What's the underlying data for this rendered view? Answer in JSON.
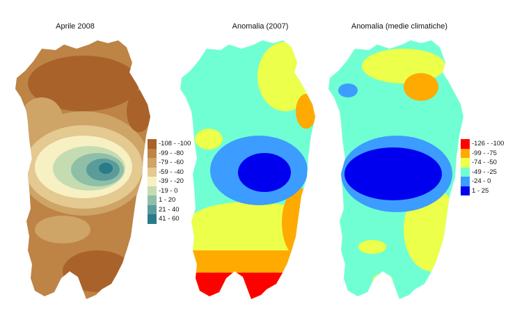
{
  "maps": [
    {
      "title": "Aprile 2008",
      "legend": [
        {
          "label": "-108 - -100",
          "color": "#a9622a"
        },
        {
          "label": "-99 - -80",
          "color": "#bd8446"
        },
        {
          "label": "-79 - -60",
          "color": "#cfa467"
        },
        {
          "label": "-59 - -40",
          "color": "#e4c990"
        },
        {
          "label": "-39 - -20",
          "color": "#f7f0c2"
        },
        {
          "label": "-19 - 0",
          "color": "#c5dcb2"
        },
        {
          "label": "1 - 20",
          "color": "#8fbfa7"
        },
        {
          "label": "21 - 40",
          "color": "#5a9c9a"
        },
        {
          "label": "41 - 60",
          "color": "#2a7a8a"
        }
      ]
    },
    {
      "title": "Anomalia (2007)",
      "legend": []
    },
    {
      "title": "Anomalia (medie climatiche)",
      "legend": [
        {
          "label": "-126 - -100",
          "color": "#ff0000"
        },
        {
          "label": "-99 - -75",
          "color": "#ffaa00"
        },
        {
          "label": "-74 - -50",
          "color": "#ecff4a"
        },
        {
          "label": "-49 - -25",
          "color": "#70ffd2"
        },
        {
          "label": "-24 - 0",
          "color": "#3c9cff"
        },
        {
          "label": "1 - 25",
          "color": "#0000ee"
        }
      ]
    }
  ]
}
